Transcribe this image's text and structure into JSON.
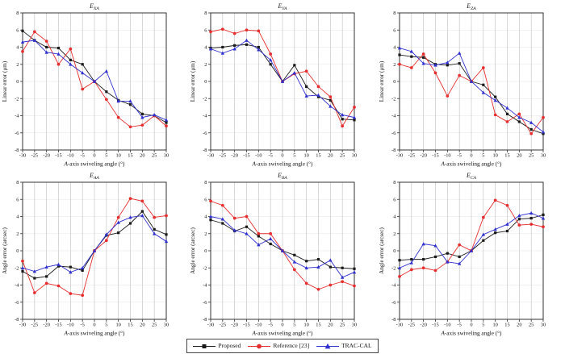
{
  "figure": {
    "x_label": "A-axis swiveling angle (°)",
    "x_ticks": [
      -30,
      -25,
      -20,
      -15,
      -10,
      -5,
      0,
      5,
      10,
      15,
      20,
      25,
      30
    ],
    "y_ticks": [
      -8,
      -6,
      -4,
      -2,
      0,
      2,
      4,
      6,
      8
    ],
    "xlim": [
      -30,
      30
    ],
    "ylim": [
      -8,
      8
    ],
    "grid": "on",
    "colors": {
      "proposed": "#1a1a1a",
      "reference": "#e62e2e",
      "traccal": "#3030cf"
    }
  },
  "chart_data": [
    {
      "type": "line",
      "title": "E",
      "title_sub": "XA",
      "xlabel": "A-axis swiveling angle (°)",
      "ylabel": "Linear error (μm)",
      "x": [
        -30,
        -25,
        -20,
        -15,
        -10,
        -5,
        0,
        5,
        10,
        15,
        20,
        25,
        30
      ],
      "xlim": [
        -30,
        30
      ],
      "ylim": [
        -8,
        8
      ],
      "series": [
        {
          "name": "Proposed",
          "color": "#1a1a1a",
          "marker": "square",
          "values": [
            5.9,
            4.8,
            4.0,
            3.9,
            2.5,
            2.0,
            0,
            -1.2,
            -2.2,
            -2.7,
            -3.8,
            -4.0,
            -4.8
          ]
        },
        {
          "name": "Reference [23]",
          "color": "#e62e2e",
          "marker": "circle",
          "values": [
            3.5,
            5.8,
            4.7,
            2.0,
            3.8,
            -0.9,
            0,
            -2.1,
            -4.2,
            -5.3,
            -5.1,
            -4.0,
            -5.2
          ]
        },
        {
          "name": "TRAC-CAL",
          "color": "#3030cf",
          "marker": "triangle",
          "values": [
            4.6,
            4.8,
            3.4,
            3.2,
            2.0,
            1.0,
            0,
            1.2,
            -2.3,
            -2.3,
            -4.2,
            -3.9,
            -4.5
          ]
        }
      ]
    },
    {
      "type": "line",
      "title": "E",
      "title_sub": "YA",
      "xlabel": "A-axis swiveling angle (°)",
      "ylabel": "Linear error (μm)",
      "x": [
        -30,
        -25,
        -20,
        -15,
        -10,
        -5,
        0,
        5,
        10,
        15,
        20,
        25,
        30
      ],
      "xlim": [
        -30,
        30
      ],
      "ylim": [
        -8,
        8
      ],
      "series": [
        {
          "name": "Proposed",
          "color": "#1a1a1a",
          "marker": "square",
          "values": [
            3.9,
            4.0,
            4.2,
            4.3,
            4.0,
            2.0,
            0,
            1.9,
            -0.6,
            -1.8,
            -2.2,
            -4.4,
            -4.5
          ]
        },
        {
          "name": "Reference [23]",
          "color": "#e62e2e",
          "marker": "circle",
          "values": [
            5.8,
            6.1,
            5.6,
            6.0,
            5.9,
            3.2,
            0,
            0.9,
            1.2,
            -0.6,
            -1.8,
            -5.2,
            -3.0
          ]
        },
        {
          "name": "TRAC-CAL",
          "color": "#3030cf",
          "marker": "triangle",
          "values": [
            3.8,
            3.3,
            3.8,
            4.8,
            3.7,
            2.5,
            0,
            1.0,
            -1.7,
            -1.6,
            -2.9,
            -3.9,
            -4.2
          ]
        }
      ]
    },
    {
      "type": "line",
      "title": "E",
      "title_sub": "ZA",
      "xlabel": "A-axis swiveling angle (°)",
      "ylabel": "Linear error (μm)",
      "x": [
        -30,
        -25,
        -20,
        -15,
        -10,
        -5,
        0,
        5,
        10,
        15,
        20,
        25,
        30
      ],
      "xlim": [
        -30,
        30
      ],
      "ylim": [
        -8,
        8
      ],
      "series": [
        {
          "name": "Proposed",
          "color": "#1a1a1a",
          "marker": "square",
          "values": [
            3.1,
            2.9,
            2.8,
            2.0,
            1.9,
            2.1,
            0,
            -0.4,
            -1.8,
            -3.8,
            -4.7,
            -5.6,
            -6.1
          ]
        },
        {
          "name": "Reference [23]",
          "color": "#e62e2e",
          "marker": "circle",
          "values": [
            2.0,
            1.6,
            3.2,
            1.0,
            -1.7,
            0.7,
            0,
            1.6,
            -3.9,
            -4.7,
            -3.8,
            -6.1,
            -4.2
          ]
        },
        {
          "name": "TRAC-CAL",
          "color": "#3030cf",
          "marker": "triangle",
          "values": [
            3.9,
            3.5,
            2.1,
            1.9,
            2.2,
            3.3,
            0,
            -1.3,
            -2.2,
            -3.1,
            -4.2,
            -4.8,
            -5.9
          ]
        }
      ]
    },
    {
      "type": "line",
      "title": "E",
      "title_sub": "AA",
      "xlabel": "A-axis swiveling angle (°)",
      "ylabel": "Angle error (arcsec)",
      "x": [
        -30,
        -25,
        -20,
        -15,
        -10,
        -5,
        0,
        5,
        10,
        15,
        20,
        25,
        30
      ],
      "xlim": [
        -30,
        30
      ],
      "ylim": [
        -8,
        8
      ],
      "series": [
        {
          "name": "Proposed",
          "color": "#1a1a1a",
          "marker": "square",
          "values": [
            -2.4,
            -3.2,
            -3.0,
            -1.8,
            -1.9,
            -2.3,
            0,
            1.8,
            2.1,
            3.2,
            4.6,
            2.5,
            1.9
          ]
        },
        {
          "name": "Reference [23]",
          "color": "#e62e2e",
          "marker": "circle",
          "values": [
            -1.2,
            -4.9,
            -3.8,
            -4.1,
            -5.0,
            -5.2,
            0,
            1.2,
            3.9,
            6.1,
            5.8,
            3.9,
            4.1
          ]
        },
        {
          "name": "TRAC-CAL",
          "color": "#3030cf",
          "marker": "triangle",
          "values": [
            -2.0,
            -2.4,
            -1.9,
            -1.6,
            -2.5,
            -2.0,
            0,
            1.9,
            3.3,
            3.9,
            4.1,
            2.0,
            1.1
          ]
        }
      ]
    },
    {
      "type": "line",
      "title": "E",
      "title_sub": "BA",
      "xlabel": "A-axis swiveling angle (°)",
      "ylabel": "Angle error (arcsec)",
      "x": [
        -30,
        -25,
        -20,
        -15,
        -10,
        -5,
        0,
        5,
        10,
        15,
        20,
        25,
        30
      ],
      "xlim": [
        -30,
        30
      ],
      "ylim": [
        -8,
        8
      ],
      "series": [
        {
          "name": "Proposed",
          "color": "#1a1a1a",
          "marker": "square",
          "values": [
            3.6,
            3.2,
            2.3,
            2.8,
            1.7,
            0.8,
            0,
            -0.5,
            -1.2,
            -1.0,
            -1.9,
            -2.0,
            -2.1
          ]
        },
        {
          "name": "Reference [23]",
          "color": "#e62e2e",
          "marker": "circle",
          "values": [
            5.8,
            5.3,
            3.8,
            4.0,
            2.0,
            2.0,
            0,
            -2.2,
            -3.8,
            -4.5,
            -4.0,
            -3.6,
            -4.1
          ]
        },
        {
          "name": "TRAC-CAL",
          "color": "#3030cf",
          "marker": "triangle",
          "values": [
            4.0,
            3.7,
            2.4,
            2.0,
            0.7,
            1.4,
            0,
            -1.3,
            -2.0,
            -1.9,
            -1.1,
            -3.1,
            -2.5
          ]
        }
      ]
    },
    {
      "type": "line",
      "title": "E",
      "title_sub": "CA",
      "xlabel": "A-axis swiveling angle (°)",
      "ylabel": "Angle error (arcsec)",
      "x": [
        -30,
        -25,
        -20,
        -15,
        -10,
        -5,
        0,
        5,
        10,
        15,
        20,
        25,
        30
      ],
      "xlim": [
        -30,
        30
      ],
      "ylim": [
        -8,
        8
      ],
      "series": [
        {
          "name": "Proposed",
          "color": "#1a1a1a",
          "marker": "square",
          "values": [
            -1.1,
            -1.0,
            -1.0,
            -0.7,
            -0.3,
            -0.7,
            0,
            1.2,
            2.1,
            2.3,
            3.7,
            3.8,
            4.2
          ]
        },
        {
          "name": "Reference [23]",
          "color": "#e62e2e",
          "marker": "circle",
          "values": [
            -3.0,
            -2.2,
            -2.0,
            -2.3,
            -1.3,
            0.7,
            0,
            3.9,
            5.9,
            5.3,
            3.0,
            3.1,
            2.8
          ]
        },
        {
          "name": "TRAC-CAL",
          "color": "#3030cf",
          "marker": "triangle",
          "values": [
            -2.0,
            -1.4,
            0.8,
            0.6,
            -1.3,
            -1.5,
            0,
            1.9,
            2.5,
            3.1,
            4.1,
            4.4,
            3.8
          ]
        }
      ]
    }
  ],
  "legend": {
    "items": [
      {
        "label": "Proposed",
        "color": "#1a1a1a",
        "marker": "square"
      },
      {
        "label": "Reference [23]",
        "color": "#e62e2e",
        "marker": "circle"
      },
      {
        "label": "TRAC-CAL",
        "color": "#3030cf",
        "marker": "triangle"
      }
    ]
  }
}
